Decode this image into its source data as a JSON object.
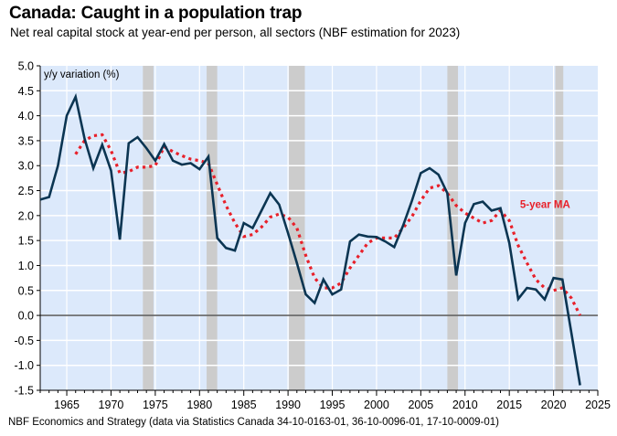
{
  "title": "Canada: Caught in a population trap",
  "subtitle": "Net real capital stock at year-end per person, all sectors (NBF estimation for 2023)",
  "footer": "NBF Economics and Strategy (data via Statistics Canada 34-10-0163-01, 36-10-0096-01, 17-10-0009-01)",
  "colors": {
    "plot_background": "#dce9fb",
    "series_main": "#0b3552",
    "series_ma": "#e8202a",
    "recession_band": "#cccccc",
    "zero_line": "#666666",
    "grid": "#ffffff"
  },
  "chart_data": {
    "type": "line",
    "title": "Canada: Caught in a population trap",
    "subtitle": "Net real capital stock at year-end per person, all sectors (NBF estimation for 2023)",
    "xlabel": "",
    "ylabel": "y/y variation (%)",
    "xlim": [
      1962,
      2025
    ],
    "ylim": [
      -1.5,
      5.0
    ],
    "x_ticks": [
      1965,
      1970,
      1975,
      1980,
      1985,
      1990,
      1995,
      2000,
      2005,
      2010,
      2015,
      2020,
      2025
    ],
    "y_ticks": [
      5.0,
      4.5,
      4.0,
      3.5,
      3.0,
      2.5,
      2.0,
      1.5,
      1.0,
      0.5,
      0.0,
      -0.5,
      -1.0,
      -1.5
    ],
    "grid": true,
    "recession_bands": [
      [
        1973.6,
        1974.8
      ],
      [
        1980.8,
        1982.0
      ],
      [
        1990.1,
        1991.9
      ],
      [
        2008.0,
        2009.2
      ],
      [
        2020.2,
        2021.1
      ]
    ],
    "series": [
      {
        "name": "Net real capital stock per person (y/y %)",
        "style": "solid",
        "x": [
          1962,
          1963,
          1964,
          1965,
          1966,
          1967,
          1968,
          1969,
          1970,
          1971,
          1972,
          1973,
          1974,
          1975,
          1976,
          1977,
          1978,
          1979,
          1980,
          1981,
          1982,
          1983,
          1984,
          1985,
          1986,
          1987,
          1988,
          1989,
          1990,
          1991,
          1992,
          1993,
          1994,
          1995,
          1996,
          1997,
          1998,
          1999,
          2000,
          2001,
          2002,
          2003,
          2004,
          2005,
          2006,
          2007,
          2008,
          2009,
          2010,
          2011,
          2012,
          2013,
          2014,
          2015,
          2016,
          2017,
          2018,
          2019,
          2020,
          2021,
          2022,
          2023
        ],
        "values": [
          2.32,
          2.37,
          3.0,
          4.0,
          4.38,
          3.55,
          2.95,
          3.42,
          2.9,
          1.52,
          3.45,
          3.57,
          3.35,
          3.1,
          3.43,
          3.1,
          3.02,
          3.05,
          2.93,
          3.18,
          1.55,
          1.35,
          1.3,
          1.85,
          1.75,
          2.1,
          2.45,
          2.22,
          1.65,
          1.05,
          0.42,
          0.25,
          0.72,
          0.42,
          0.52,
          1.48,
          1.62,
          1.58,
          1.57,
          1.48,
          1.37,
          1.8,
          2.3,
          2.85,
          2.95,
          2.82,
          2.45,
          0.8,
          1.85,
          2.23,
          2.28,
          2.1,
          2.15,
          1.45,
          0.33,
          0.55,
          0.52,
          0.32,
          0.75,
          0.72,
          -0.34,
          -1.4
        ]
      },
      {
        "name": "5-year MA",
        "style": "dotted",
        "x": [
          1966,
          1967,
          1968,
          1969,
          1970,
          1971,
          1972,
          1973,
          1974,
          1975,
          1976,
          1977,
          1978,
          1979,
          1980,
          1981,
          1982,
          1983,
          1984,
          1985,
          1986,
          1987,
          1988,
          1989,
          1990,
          1991,
          1992,
          1993,
          1994,
          1995,
          1996,
          1997,
          1998,
          1999,
          2000,
          2001,
          2002,
          2003,
          2004,
          2005,
          2006,
          2007,
          2008,
          2009,
          2010,
          2011,
          2012,
          2013,
          2014,
          2015,
          2016,
          2017,
          2018,
          2019,
          2020,
          2021,
          2022,
          2023
        ],
        "values": [
          3.23,
          3.5,
          3.6,
          3.62,
          3.3,
          2.85,
          2.88,
          2.97,
          2.97,
          3.0,
          3.38,
          3.28,
          3.2,
          3.13,
          3.1,
          3.05,
          2.62,
          2.2,
          1.85,
          1.58,
          1.62,
          1.77,
          1.97,
          2.03,
          1.97,
          1.75,
          1.2,
          0.75,
          0.55,
          0.55,
          0.65,
          0.95,
          1.2,
          1.45,
          1.55,
          1.55,
          1.55,
          1.75,
          1.98,
          2.3,
          2.55,
          2.6,
          2.45,
          2.2,
          2.05,
          1.95,
          1.85,
          1.9,
          2.1,
          1.9,
          1.4,
          1.05,
          0.72,
          0.55,
          0.5,
          0.55,
          0.35,
          0.0
        ]
      }
    ],
    "annotations": [
      {
        "text": "5-year MA",
        "x": 2016,
        "y": 2.15
      }
    ],
    "legend": "none"
  }
}
